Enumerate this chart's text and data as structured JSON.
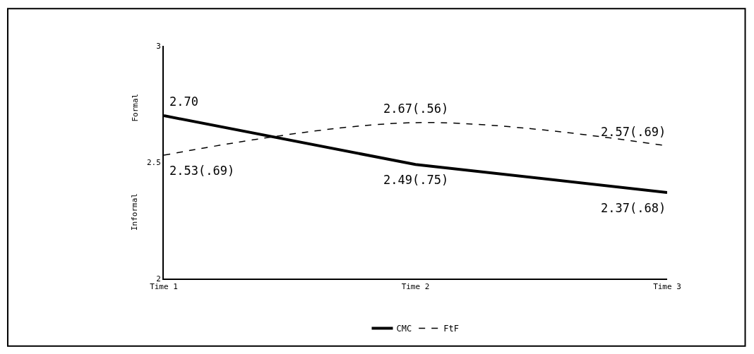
{
  "chart_data": {
    "type": "line",
    "categories": [
      "Time 1",
      "Time 2",
      "Time 3"
    ],
    "series": [
      {
        "name": "CMC",
        "color": "#000000",
        "line_style": "solid",
        "values": [
          2.7,
          2.49,
          2.37
        ],
        "value_labels": [
          "2.70",
          "2.49(.75)",
          "2.37(.68)"
        ]
      },
      {
        "name": "FtF",
        "color": "#000000",
        "line_style": "dashed",
        "values": [
          2.53,
          2.67,
          2.57
        ],
        "value_labels": [
          "2.53(.69)",
          "2.67(.56)",
          "2.57(.69)"
        ]
      }
    ],
    "ylim": [
      2,
      3
    ],
    "yticks": [
      2,
      2.5,
      3
    ],
    "annotations": [
      "Formal",
      "Informal"
    ],
    "legend": "bottom",
    "marker": "none"
  }
}
